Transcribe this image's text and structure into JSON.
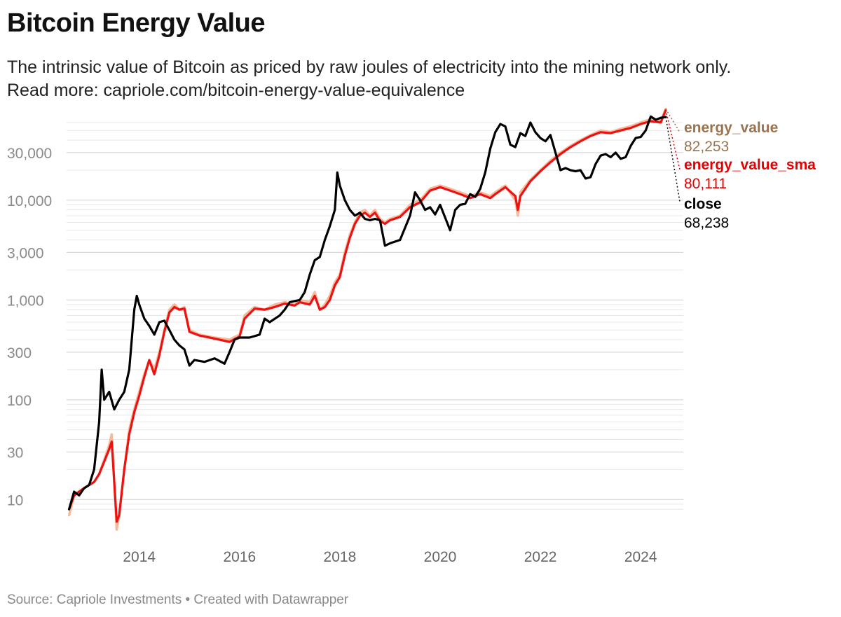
{
  "header": {
    "title": "Bitcoin Energy Value",
    "subtitle_line1": "The intrinsic value of Bitcoin as priced by raw joules of electricity into the mining network only.",
    "subtitle_line2": "Read more: capriole.com/bitcoin-energy-value-equivalence"
  },
  "footer": {
    "source": "Source: Capriole Investments • Created with Datawrapper"
  },
  "chart_data": {
    "type": "line",
    "title": "Bitcoin Energy Value",
    "y_scale": "log",
    "ylim": [
      4,
      60000
    ],
    "xlim": [
      2012.55,
      2024.85
    ],
    "y_ticks": [
      {
        "value": 10,
        "label": "10"
      },
      {
        "value": 30,
        "label": "30"
      },
      {
        "value": 100,
        "label": "100"
      },
      {
        "value": 300,
        "label": "300"
      },
      {
        "value": 1000,
        "label": "1,000"
      },
      {
        "value": 3000,
        "label": "3,000"
      },
      {
        "value": 10000,
        "label": "10,000"
      },
      {
        "value": 30000,
        "label": "30,000"
      }
    ],
    "x_ticks": [
      {
        "value": 2014,
        "label": "2014"
      },
      {
        "value": 2016,
        "label": "2016"
      },
      {
        "value": 2018,
        "label": "2018"
      },
      {
        "value": 2020,
        "label": "2020"
      },
      {
        "value": 2022,
        "label": "2022"
      },
      {
        "value": 2024,
        "label": "2024"
      }
    ],
    "grid": true,
    "series": [
      {
        "name": "energy_value",
        "color": "#f7b999",
        "last_label": "82,253",
        "label_color": "#9a7350",
        "points": [
          [
            2012.6,
            7
          ],
          [
            2012.7,
            11
          ],
          [
            2012.8,
            12
          ],
          [
            2012.9,
            13
          ],
          [
            2013.0,
            14
          ],
          [
            2013.1,
            15
          ],
          [
            2013.2,
            18
          ],
          [
            2013.3,
            25
          ],
          [
            2013.4,
            35
          ],
          [
            2013.45,
            45
          ],
          [
            2013.5,
            15
          ],
          [
            2013.55,
            5
          ],
          [
            2013.6,
            7
          ],
          [
            2013.7,
            20
          ],
          [
            2013.8,
            50
          ],
          [
            2013.9,
            80
          ],
          [
            2014.0,
            120
          ],
          [
            2014.1,
            180
          ],
          [
            2014.2,
            250
          ],
          [
            2014.3,
            200
          ],
          [
            2014.4,
            300
          ],
          [
            2014.5,
            500
          ],
          [
            2014.6,
            800
          ],
          [
            2014.7,
            900
          ],
          [
            2014.8,
            800
          ],
          [
            2014.9,
            850
          ],
          [
            2015.0,
            500
          ],
          [
            2015.2,
            450
          ],
          [
            2015.5,
            420
          ],
          [
            2015.8,
            400
          ],
          [
            2016.0,
            450
          ],
          [
            2016.1,
            700
          ],
          [
            2016.3,
            850
          ],
          [
            2016.5,
            800
          ],
          [
            2016.7,
            900
          ],
          [
            2016.9,
            950
          ],
          [
            2017.1,
            900
          ],
          [
            2017.2,
            1000
          ],
          [
            2017.4,
            950
          ],
          [
            2017.5,
            1200
          ],
          [
            2017.6,
            800
          ],
          [
            2017.7,
            900
          ],
          [
            2017.8,
            1100
          ],
          [
            2017.9,
            1500
          ],
          [
            2018.0,
            1800
          ],
          [
            2018.1,
            3000
          ],
          [
            2018.2,
            4500
          ],
          [
            2018.3,
            6000
          ],
          [
            2018.4,
            7500
          ],
          [
            2018.5,
            8000
          ],
          [
            2018.6,
            7000
          ],
          [
            2018.7,
            8000
          ],
          [
            2018.8,
            6500
          ],
          [
            2018.9,
            6000
          ],
          [
            2019.0,
            6500
          ],
          [
            2019.2,
            7000
          ],
          [
            2019.4,
            9000
          ],
          [
            2019.6,
            10000
          ],
          [
            2019.8,
            13000
          ],
          [
            2020.0,
            14000
          ],
          [
            2020.2,
            13000
          ],
          [
            2020.4,
            12000
          ],
          [
            2020.6,
            11000
          ],
          [
            2020.8,
            12000
          ],
          [
            2021.0,
            11000
          ],
          [
            2021.1,
            12000
          ],
          [
            2021.3,
            14000
          ],
          [
            2021.5,
            10000
          ],
          [
            2021.55,
            7000
          ],
          [
            2021.6,
            12000
          ],
          [
            2021.8,
            16000
          ],
          [
            2022.0,
            20000
          ],
          [
            2022.2,
            25000
          ],
          [
            2022.4,
            30000
          ],
          [
            2022.6,
            35000
          ],
          [
            2022.8,
            40000
          ],
          [
            2023.0,
            45000
          ],
          [
            2023.2,
            50000
          ],
          [
            2023.4,
            48000
          ],
          [
            2023.6,
            52000
          ],
          [
            2023.8,
            55000
          ],
          [
            2024.0,
            60000
          ],
          [
            2024.2,
            65000
          ],
          [
            2024.4,
            62000
          ],
          [
            2024.5,
            82253
          ]
        ]
      },
      {
        "name": "energy_value_sma",
        "color": "#ee1111",
        "last_label": "80,111",
        "label_color": "#e60000",
        "points": [
          [
            2012.6,
            8
          ],
          [
            2012.7,
            11
          ],
          [
            2012.8,
            12
          ],
          [
            2012.9,
            13
          ],
          [
            2013.0,
            14
          ],
          [
            2013.1,
            15
          ],
          [
            2013.2,
            18
          ],
          [
            2013.3,
            24
          ],
          [
            2013.4,
            32
          ],
          [
            2013.45,
            38
          ],
          [
            2013.5,
            15
          ],
          [
            2013.55,
            6
          ],
          [
            2013.6,
            7
          ],
          [
            2013.7,
            20
          ],
          [
            2013.8,
            45
          ],
          [
            2013.9,
            75
          ],
          [
            2014.0,
            110
          ],
          [
            2014.1,
            170
          ],
          [
            2014.2,
            250
          ],
          [
            2014.3,
            180
          ],
          [
            2014.4,
            280
          ],
          [
            2014.5,
            480
          ],
          [
            2014.6,
            750
          ],
          [
            2014.7,
            850
          ],
          [
            2014.8,
            800
          ],
          [
            2014.9,
            820
          ],
          [
            2015.0,
            480
          ],
          [
            2015.2,
            440
          ],
          [
            2015.5,
            410
          ],
          [
            2015.8,
            380
          ],
          [
            2016.0,
            430
          ],
          [
            2016.1,
            650
          ],
          [
            2016.3,
            820
          ],
          [
            2016.5,
            800
          ],
          [
            2016.7,
            850
          ],
          [
            2016.9,
            920
          ],
          [
            2017.1,
            880
          ],
          [
            2017.2,
            950
          ],
          [
            2017.4,
            900
          ],
          [
            2017.5,
            1100
          ],
          [
            2017.6,
            800
          ],
          [
            2017.7,
            850
          ],
          [
            2017.8,
            1000
          ],
          [
            2017.9,
            1400
          ],
          [
            2018.0,
            1700
          ],
          [
            2018.1,
            2800
          ],
          [
            2018.2,
            4200
          ],
          [
            2018.3,
            5800
          ],
          [
            2018.4,
            7000
          ],
          [
            2018.5,
            7500
          ],
          [
            2018.6,
            6800
          ],
          [
            2018.7,
            7500
          ],
          [
            2018.8,
            6200
          ],
          [
            2018.9,
            5800
          ],
          [
            2019.0,
            6300
          ],
          [
            2019.2,
            6800
          ],
          [
            2019.4,
            8500
          ],
          [
            2019.6,
            9500
          ],
          [
            2019.8,
            12500
          ],
          [
            2020.0,
            13500
          ],
          [
            2020.2,
            12500
          ],
          [
            2020.4,
            11500
          ],
          [
            2020.6,
            10500
          ],
          [
            2020.8,
            11500
          ],
          [
            2021.0,
            10500
          ],
          [
            2021.1,
            11500
          ],
          [
            2021.3,
            13500
          ],
          [
            2021.5,
            11000
          ],
          [
            2021.55,
            8000
          ],
          [
            2021.6,
            11000
          ],
          [
            2021.8,
            15500
          ],
          [
            2022.0,
            19500
          ],
          [
            2022.2,
            24000
          ],
          [
            2022.4,
            29000
          ],
          [
            2022.6,
            34000
          ],
          [
            2022.8,
            39000
          ],
          [
            2023.0,
            44000
          ],
          [
            2023.2,
            48000
          ],
          [
            2023.4,
            47000
          ],
          [
            2023.6,
            50000
          ],
          [
            2023.8,
            53000
          ],
          [
            2024.0,
            58000
          ],
          [
            2024.2,
            62000
          ],
          [
            2024.4,
            60000
          ],
          [
            2024.5,
            80111
          ]
        ]
      },
      {
        "name": "close",
        "color": "#000000",
        "last_label": "68,238",
        "label_color": "#000000",
        "points": [
          [
            2012.6,
            8
          ],
          [
            2012.7,
            12
          ],
          [
            2012.8,
            11
          ],
          [
            2012.9,
            13
          ],
          [
            2013.0,
            14
          ],
          [
            2013.1,
            20
          ],
          [
            2013.2,
            60
          ],
          [
            2013.25,
            200
          ],
          [
            2013.3,
            100
          ],
          [
            2013.4,
            120
          ],
          [
            2013.5,
            80
          ],
          [
            2013.6,
            100
          ],
          [
            2013.7,
            120
          ],
          [
            2013.8,
            200
          ],
          [
            2013.9,
            800
          ],
          [
            2013.95,
            1100
          ],
          [
            2014.0,
            900
          ],
          [
            2014.1,
            650
          ],
          [
            2014.2,
            550
          ],
          [
            2014.3,
            450
          ],
          [
            2014.4,
            600
          ],
          [
            2014.5,
            620
          ],
          [
            2014.6,
            500
          ],
          [
            2014.7,
            400
          ],
          [
            2014.8,
            350
          ],
          [
            2014.9,
            320
          ],
          [
            2015.0,
            220
          ],
          [
            2015.1,
            250
          ],
          [
            2015.3,
            240
          ],
          [
            2015.5,
            260
          ],
          [
            2015.7,
            230
          ],
          [
            2015.8,
            300
          ],
          [
            2015.9,
            400
          ],
          [
            2016.0,
            420
          ],
          [
            2016.2,
            420
          ],
          [
            2016.4,
            450
          ],
          [
            2016.5,
            650
          ],
          [
            2016.6,
            600
          ],
          [
            2016.8,
            700
          ],
          [
            2016.9,
            800
          ],
          [
            2017.0,
            950
          ],
          [
            2017.2,
            1000
          ],
          [
            2017.3,
            1200
          ],
          [
            2017.4,
            1800
          ],
          [
            2017.5,
            2500
          ],
          [
            2017.6,
            2700
          ],
          [
            2017.7,
            4000
          ],
          [
            2017.8,
            5500
          ],
          [
            2017.9,
            8000
          ],
          [
            2017.95,
            19000
          ],
          [
            2018.0,
            14000
          ],
          [
            2018.1,
            10000
          ],
          [
            2018.2,
            8000
          ],
          [
            2018.3,
            7000
          ],
          [
            2018.4,
            7500
          ],
          [
            2018.5,
            6500
          ],
          [
            2018.6,
            6300
          ],
          [
            2018.7,
            6500
          ],
          [
            2018.8,
            6300
          ],
          [
            2018.9,
            3500
          ],
          [
            2019.0,
            3700
          ],
          [
            2019.2,
            4000
          ],
          [
            2019.4,
            7000
          ],
          [
            2019.5,
            12000
          ],
          [
            2019.6,
            10000
          ],
          [
            2019.7,
            8000
          ],
          [
            2019.8,
            8500
          ],
          [
            2019.9,
            7200
          ],
          [
            2020.0,
            9000
          ],
          [
            2020.2,
            5000
          ],
          [
            2020.3,
            8000
          ],
          [
            2020.4,
            9000
          ],
          [
            2020.5,
            9200
          ],
          [
            2020.6,
            11500
          ],
          [
            2020.7,
            10800
          ],
          [
            2020.8,
            13000
          ],
          [
            2020.9,
            19000
          ],
          [
            2021.0,
            33000
          ],
          [
            2021.1,
            48000
          ],
          [
            2021.2,
            58000
          ],
          [
            2021.3,
            55000
          ],
          [
            2021.4,
            36000
          ],
          [
            2021.5,
            34000
          ],
          [
            2021.6,
            47000
          ],
          [
            2021.7,
            44000
          ],
          [
            2021.8,
            60000
          ],
          [
            2021.9,
            48000
          ],
          [
            2022.0,
            42000
          ],
          [
            2022.1,
            39000
          ],
          [
            2022.2,
            45000
          ],
          [
            2022.3,
            30000
          ],
          [
            2022.4,
            20000
          ],
          [
            2022.5,
            21000
          ],
          [
            2022.6,
            20000
          ],
          [
            2022.7,
            19500
          ],
          [
            2022.8,
            20000
          ],
          [
            2022.9,
            16500
          ],
          [
            2023.0,
            17000
          ],
          [
            2023.1,
            23000
          ],
          [
            2023.2,
            28000
          ],
          [
            2023.3,
            29000
          ],
          [
            2023.4,
            27000
          ],
          [
            2023.5,
            30000
          ],
          [
            2023.6,
            26000
          ],
          [
            2023.7,
            27000
          ],
          [
            2023.8,
            35000
          ],
          [
            2023.9,
            42000
          ],
          [
            2024.0,
            43000
          ],
          [
            2024.1,
            50000
          ],
          [
            2024.2,
            69000
          ],
          [
            2024.3,
            64000
          ],
          [
            2024.4,
            67000
          ],
          [
            2024.5,
            68238
          ]
        ]
      }
    ]
  }
}
